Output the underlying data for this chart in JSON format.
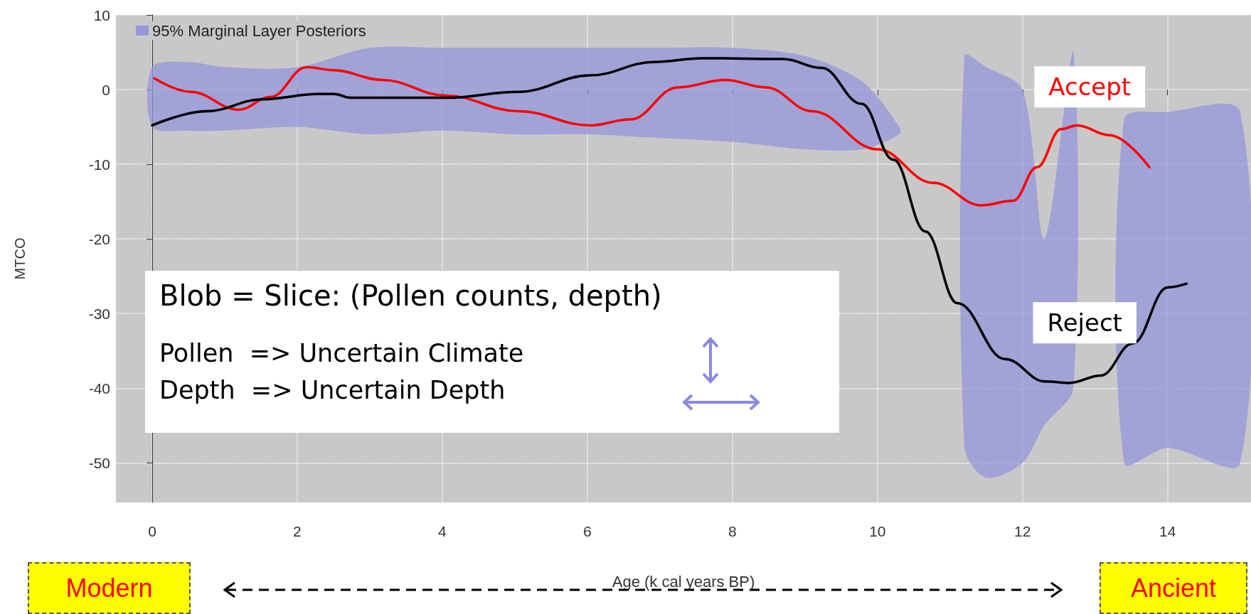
{
  "chart_data": {
    "type": "line",
    "xlabel": "Age (k cal years BP)",
    "ylabel": "MTCO",
    "xlim": [
      -0.5,
      15.15
    ],
    "ylim": [
      -55.3,
      10
    ],
    "xticks": [
      0,
      2,
      4,
      6,
      8,
      10,
      12,
      14
    ],
    "yticks": [
      -50,
      -40,
      -30,
      -20,
      -10,
      0,
      10
    ],
    "grid": true,
    "legend": "top left",
    "marker": "none",
    "line_style": "solid",
    "annotations": [
      "Blob = Slice: (Pollen counts, depth)",
      "Pollen  => Uncertain Climate",
      "Depth  => Uncertain Depth",
      "Modern",
      "Ancient"
    ],
    "series": [
      {
        "name": "95% Marginal Layer Posteriors",
        "type": "area",
        "color": "#9497dc",
        "x": [
          0,
          0.5,
          1,
          2,
          3,
          4,
          5,
          6,
          7,
          8,
          9,
          9.8,
          10.3
        ],
        "values": [
          null,
          null,
          null,
          null,
          null,
          null,
          null,
          null,
          null,
          null,
          null,
          null,
          null
        ],
        "lower": [
          -5,
          -5.5,
          -5.5,
          -5,
          -6,
          -5.5,
          -6,
          -6,
          -6.5,
          -7,
          -8,
          -8,
          -6
        ],
        "upper": [
          3,
          3.7,
          3,
          3,
          5.6,
          5.6,
          5.6,
          5.6,
          5.6,
          5.6,
          4.5,
          1,
          -5
        ]
      },
      {
        "type": "area",
        "color": "#9497dc",
        "x": [
          11.2,
          11.5,
          12,
          12.3,
          12.7
        ],
        "values": [
          null,
          null,
          null,
          null,
          null
        ],
        "lower": [
          -48,
          -52,
          -50,
          -45,
          -40
        ],
        "upper": [
          4.5,
          3,
          0,
          -20,
          5
        ]
      },
      {
        "type": "area",
        "color": "#9497dc",
        "x": [
          13.4,
          14,
          15
        ],
        "values": [
          null,
          null,
          null
        ],
        "lower": [
          -50,
          -48,
          -50
        ],
        "upper": [
          -4,
          -3,
          -3
        ]
      },
      {
        "name": "Accept",
        "color": "#ff0000",
        "x": [
          0.03,
          0.53,
          1.19,
          1.63,
          2.13,
          2.5,
          3.17,
          4.05,
          5.05,
          6.04,
          6.59,
          7.25,
          7.9,
          8.46,
          9.1,
          10,
          10.77,
          11.43,
          11.87,
          12.2,
          12.53,
          12.75,
          13.2,
          13.75
        ],
        "values": [
          1.5,
          -0.3,
          -2.7,
          -1,
          3,
          2.6,
          1.3,
          -0.8,
          -2.9,
          -4.8,
          -4,
          0.3,
          1.3,
          0.3,
          -2.9,
          -8,
          -12.5,
          -15.5,
          -14.9,
          -10.4,
          -5.3,
          -4.8,
          -6.1,
          -10.4
        ]
      },
      {
        "name": "Reject",
        "color": "#000000",
        "x": [
          0,
          0.75,
          1.52,
          2.29,
          2.51,
          2.73,
          3.39,
          4.05,
          5.05,
          6.04,
          6.92,
          7.58,
          8.7,
          9.23,
          9.78,
          10.22,
          10.66,
          11.1,
          11.76,
          12.31,
          12.64,
          13.08,
          13.52,
          14,
          14.26
        ],
        "values": [
          -4.8,
          -2.9,
          -1.3,
          -0.6,
          -0.6,
          -1.1,
          -1.1,
          -1.1,
          -0.3,
          1.9,
          3.7,
          4.2,
          4.1,
          2.9,
          -1.9,
          -9.4,
          -19,
          -28.6,
          -36.1,
          -39.1,
          -39.3,
          -38.3,
          -34,
          -26.5,
          -26
        ]
      }
    ]
  }
}
